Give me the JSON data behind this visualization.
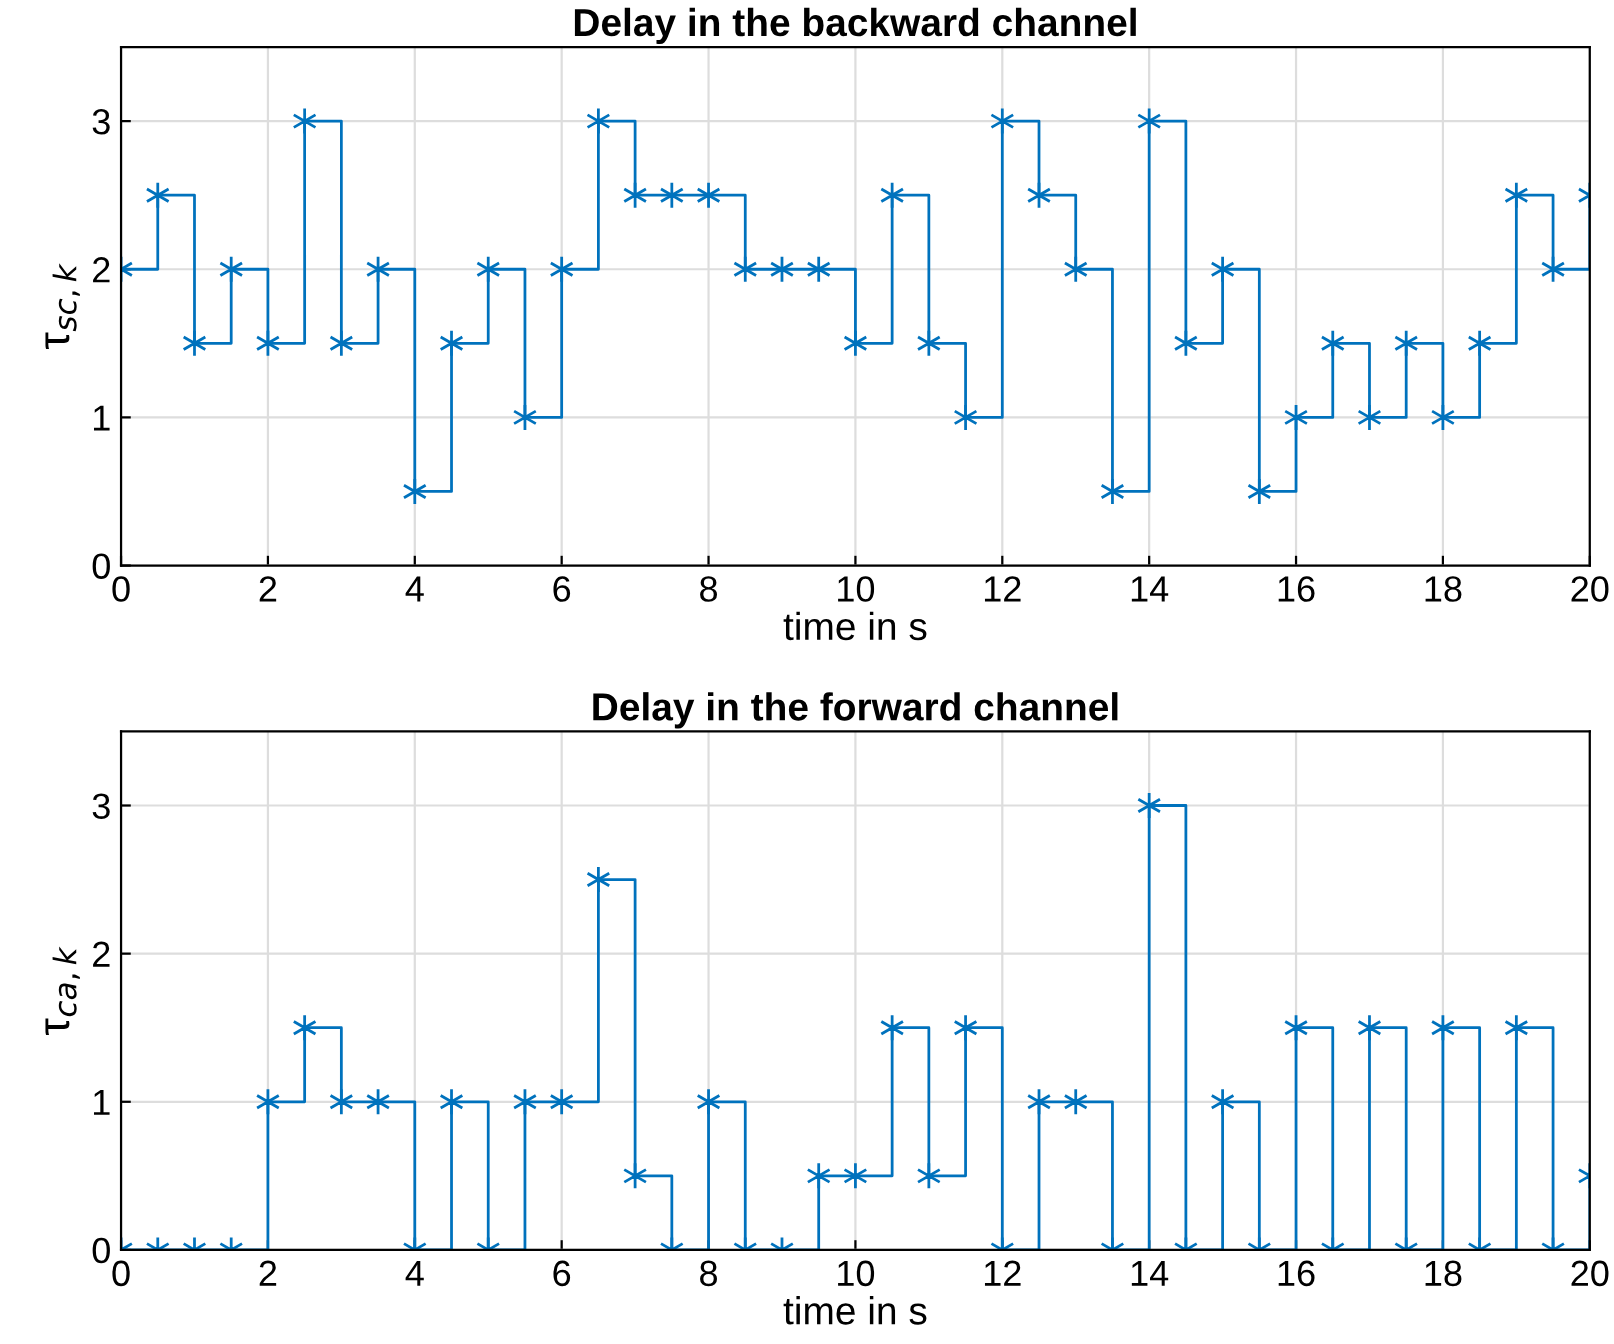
{
  "chart_data": [
    {
      "type": "step",
      "title": "Delay in the backward channel",
      "xlabel": "time in s",
      "ylabel": "τ$_{sc,k}$",
      "x": [
        0,
        0.5,
        1,
        1.5,
        2,
        2.5,
        3,
        3.5,
        4,
        4.5,
        5,
        5.5,
        6,
        6.5,
        7,
        7.5,
        8,
        8.5,
        9,
        9.5,
        10,
        10.5,
        11,
        11.5,
        12,
        12.5,
        13,
        13.5,
        14,
        14.5,
        15,
        15.5,
        16,
        16.5,
        17,
        17.5,
        18,
        18.5,
        19,
        19.5,
        20
      ],
      "series": [
        {
          "color": "#0072bd",
          "values": [
            2,
            2.5,
            1.5,
            2,
            1.5,
            3,
            1.5,
            2,
            0.5,
            1.5,
            2,
            1,
            2,
            3,
            2.5,
            2.5,
            2.5,
            2,
            2,
            2,
            1.5,
            2.5,
            1.5,
            1,
            3,
            2.5,
            2,
            0.5,
            3,
            1.5,
            2,
            0.5,
            1,
            1.5,
            1,
            1.5,
            1,
            1.5,
            2.5,
            2,
            2.5
          ]
        }
      ],
      "xlim": [
        0,
        20
      ],
      "xticks": [
        0,
        2,
        4,
        6,
        8,
        10,
        12,
        14,
        16,
        18,
        20
      ],
      "ylim": [
        0,
        3.5
      ],
      "yticks": [
        0,
        1,
        2,
        3
      ],
      "grid": true,
      "marker": "cross",
      "line_style": "solid"
    },
    {
      "type": "step",
      "title": "Delay in the forward channel",
      "xlabel": "time in s",
      "ylabel": "τ$_{ca,k}$",
      "x": [
        0,
        0.5,
        1,
        1.5,
        2,
        2.5,
        3,
        3.5,
        4,
        4.5,
        5,
        5.5,
        6,
        6.5,
        7,
        7.5,
        8,
        8.5,
        9,
        9.5,
        10,
        10.5,
        11,
        11.5,
        12,
        12.5,
        13,
        13.5,
        14,
        14.5,
        15,
        15.5,
        16,
        16.5,
        17,
        17.5,
        18,
        18.5,
        19,
        19.5,
        20
      ],
      "series": [
        {
          "color": "#0072bd",
          "values": [
            0,
            0,
            0,
            0,
            1,
            1.5,
            1,
            1,
            0,
            1,
            0,
            1,
            1,
            2.5,
            0.5,
            0,
            1,
            0,
            0,
            0.5,
            0.5,
            1.5,
            0.5,
            1.5,
            0,
            1,
            1,
            0,
            3,
            0,
            1,
            0,
            1.5,
            0,
            1.5,
            0,
            1.5,
            0,
            1.5,
            0,
            0.5
          ]
        }
      ],
      "xlim": [
        0,
        20
      ],
      "xticks": [
        0,
        2,
        4,
        6,
        8,
        10,
        12,
        14,
        16,
        18,
        20
      ],
      "ylim": [
        0,
        3.5
      ],
      "yticks": [
        0,
        1,
        2,
        3
      ],
      "grid": true,
      "marker": "cross",
      "line_style": "solid"
    }
  ]
}
